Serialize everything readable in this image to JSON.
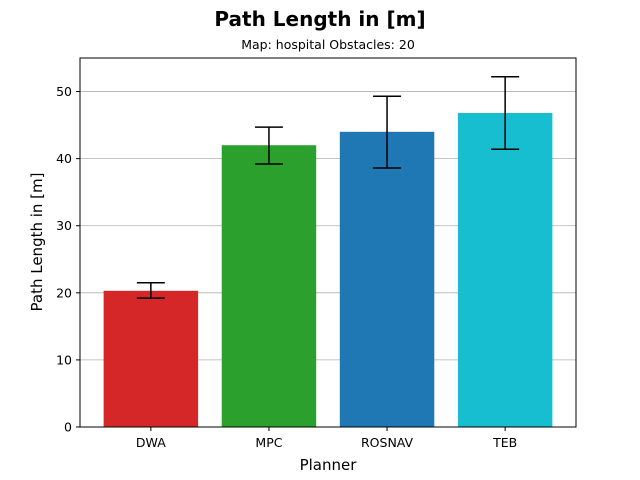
{
  "chart_data": {
    "type": "bar",
    "title": "Path Length in [m]",
    "subtitle": "Map: hospital Obstacles: 20",
    "xlabel": "Planner",
    "ylabel": "Path Length in [m]",
    "categories": [
      "DWA",
      "MPC",
      "ROSNAV",
      "TEB"
    ],
    "values": [
      20.3,
      42.0,
      44.0,
      46.8
    ],
    "error_low": [
      19.2,
      39.2,
      38.6,
      41.4
    ],
    "error_high": [
      21.5,
      44.7,
      49.3,
      52.2
    ],
    "colors": [
      "#d62728",
      "#2ca02c",
      "#1f77b4",
      "#17becf"
    ],
    "ylim": [
      0,
      55
    ],
    "yticks": [
      0,
      10,
      20,
      30,
      40,
      50
    ],
    "grid": "horizontal",
    "legend": "none"
  }
}
